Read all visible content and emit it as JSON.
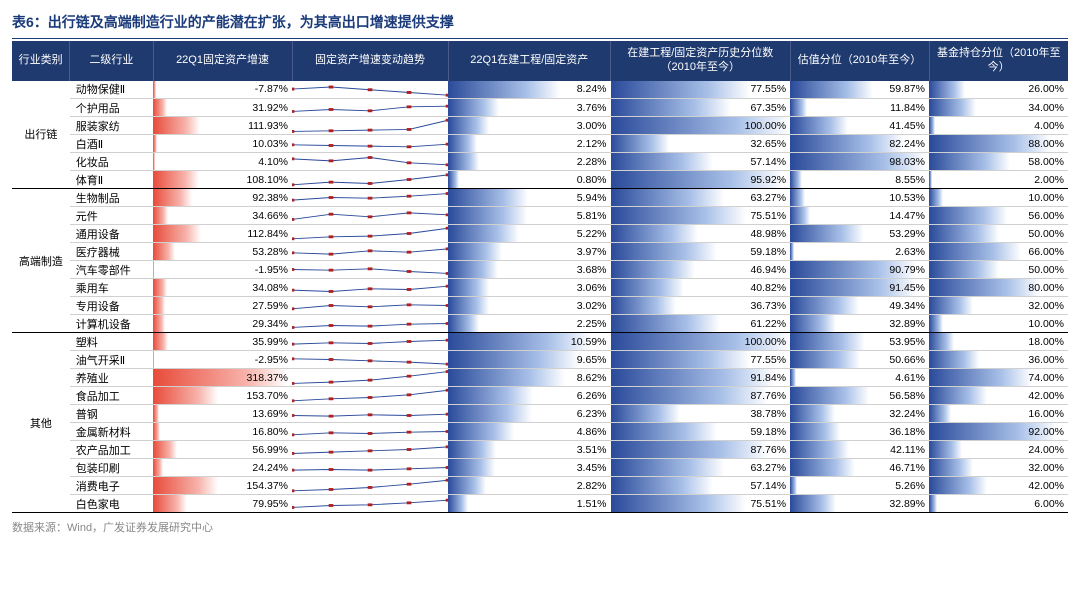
{
  "title": "表6：出行链及高端制造行业的产能潜在扩张，为其高出口增速提供支撑",
  "footer": "数据来源：Wind，广发证券发展研究中心",
  "colors": {
    "header_bg": "#1f3a6e",
    "header_text": "#ffffff",
    "red_bar_start": "#e84b3a",
    "blue_bar_start": "#2a4a9a",
    "spark_line": "#2a4a9a",
    "spark_marker": "#b02020",
    "grid": "#d0d0d0",
    "title_color": "#1a3a7a"
  },
  "columns": [
    "行业类别",
    "二级行业",
    "22Q1固定资产增速",
    "固定资产增速变动趋势",
    "22Q1在建工程/固定资产",
    "在建工程/固定资产历史分位数（2010年至今）",
    "估值分位（2010年至今）",
    "基金持仓分位（2010年至今）"
  ],
  "bar_scales": {
    "col1_max": 330,
    "col2_max": 12,
    "col3_max": 100,
    "col4_max": 100,
    "col5_max": 100
  },
  "spark_config": {
    "points": 5,
    "min": 0,
    "max": 1
  },
  "categories": [
    {
      "name": "出行链",
      "rows": [
        {
          "name": "动物保健Ⅱ",
          "v1": -7.87,
          "spark": [
            0.55,
            0.7,
            0.5,
            0.3,
            0.1
          ],
          "v2": 8.24,
          "v3": 77.55,
          "v4": 59.87,
          "v5": 26.0
        },
        {
          "name": "个护用品",
          "v1": 31.92,
          "spark": [
            0.2,
            0.35,
            0.25,
            0.55,
            0.6
          ],
          "v2": 3.76,
          "v3": 67.35,
          "v4": 11.84,
          "v5": 34.0
        },
        {
          "name": "服装家纺",
          "v1": 111.93,
          "spark": [
            0.05,
            0.1,
            0.15,
            0.2,
            0.9
          ],
          "v2": 3.0,
          "v3": 100.0,
          "v4": 41.45,
          "v5": 4.0
        },
        {
          "name": "白酒Ⅱ",
          "v1": 10.03,
          "spark": [
            0.4,
            0.35,
            0.3,
            0.25,
            0.45
          ],
          "v2": 2.12,
          "v3": 32.65,
          "v4": 82.24,
          "v5": 88.0
        },
        {
          "name": "化妆品",
          "v1": 4.1,
          "spark": [
            0.7,
            0.55,
            0.8,
            0.4,
            0.25
          ],
          "v2": 2.28,
          "v3": 57.14,
          "v4": 98.03,
          "v5": 58.0
        },
        {
          "name": "体育Ⅱ",
          "v1": 108.1,
          "spark": [
            0.1,
            0.3,
            0.2,
            0.5,
            0.85
          ],
          "v2": 0.8,
          "v3": 95.92,
          "v4": 8.55,
          "v5": 2.0
        }
      ]
    },
    {
      "name": "高端制造",
      "rows": [
        {
          "name": "生物制品",
          "v1": 92.38,
          "spark": [
            0.3,
            0.5,
            0.45,
            0.6,
            0.8
          ],
          "v2": 5.94,
          "v3": 63.27,
          "v4": 10.53,
          "v5": 10.0
        },
        {
          "name": "元件",
          "v1": 34.66,
          "spark": [
            0.2,
            0.6,
            0.4,
            0.7,
            0.55
          ],
          "v2": 5.81,
          "v3": 75.51,
          "v4": 14.47,
          "v5": 56.0
        },
        {
          "name": "通用设备",
          "v1": 112.84,
          "spark": [
            0.1,
            0.25,
            0.3,
            0.5,
            0.9
          ],
          "v2": 5.22,
          "v3": 48.98,
          "v4": 53.29,
          "v5": 50.0
        },
        {
          "name": "医疗器械",
          "v1": 53.28,
          "spark": [
            0.4,
            0.3,
            0.55,
            0.45,
            0.7
          ],
          "v2": 3.97,
          "v3": 59.18,
          "v4": 2.63,
          "v5": 66.0
        },
        {
          "name": "汽车零部件",
          "v1": -1.95,
          "spark": [
            0.5,
            0.45,
            0.55,
            0.35,
            0.2
          ],
          "v2": 3.68,
          "v3": 46.94,
          "v4": 90.79,
          "v5": 50.0
        },
        {
          "name": "乘用车",
          "v1": 34.08,
          "spark": [
            0.3,
            0.2,
            0.4,
            0.35,
            0.6
          ],
          "v2": 3.06,
          "v3": 40.82,
          "v4": 91.45,
          "v5": 80.0
        },
        {
          "name": "专用设备",
          "v1": 27.59,
          "spark": [
            0.25,
            0.5,
            0.4,
            0.55,
            0.5
          ],
          "v2": 3.02,
          "v3": 36.73,
          "v4": 49.34,
          "v5": 32.0
        },
        {
          "name": "计算机设备",
          "v1": 29.34,
          "spark": [
            0.2,
            0.35,
            0.3,
            0.45,
            0.5
          ],
          "v2": 2.25,
          "v3": 61.22,
          "v4": 32.89,
          "v5": 10.0
        }
      ]
    },
    {
      "name": "其他",
      "rows": [
        {
          "name": "塑料",
          "v1": 35.99,
          "spark": [
            0.3,
            0.4,
            0.35,
            0.5,
            0.6
          ],
          "v2": 10.59,
          "v3": 100.0,
          "v4": 53.95,
          "v5": 18.0
        },
        {
          "name": "油气开采Ⅱ",
          "v1": -2.95,
          "spark": [
            0.55,
            0.5,
            0.4,
            0.3,
            0.15
          ],
          "v2": 9.65,
          "v3": 77.55,
          "v4": 50.66,
          "v5": 36.0
        },
        {
          "name": "养殖业",
          "v1": 318.37,
          "spark": [
            0.05,
            0.15,
            0.3,
            0.6,
            0.95
          ],
          "v2": 8.62,
          "v3": 91.84,
          "v4": 4.61,
          "v5": 74.0
        },
        {
          "name": "食品加工",
          "v1": 153.7,
          "spark": [
            0.1,
            0.25,
            0.35,
            0.55,
            0.9
          ],
          "v2": 6.26,
          "v3": 87.76,
          "v4": 56.58,
          "v5": 42.0
        },
        {
          "name": "普钢",
          "v1": 13.69,
          "spark": [
            0.35,
            0.3,
            0.4,
            0.35,
            0.45
          ],
          "v2": 6.23,
          "v3": 38.78,
          "v4": 32.24,
          "v5": 16.0
        },
        {
          "name": "金属新材料",
          "v1": 16.8,
          "spark": [
            0.25,
            0.4,
            0.35,
            0.45,
            0.5
          ],
          "v2": 4.86,
          "v3": 59.18,
          "v4": 36.18,
          "v5": 92.0
        },
        {
          "name": "农产品加工",
          "v1": 56.99,
          "spark": [
            0.2,
            0.3,
            0.4,
            0.5,
            0.7
          ],
          "v2": 3.51,
          "v3": 87.76,
          "v4": 42.11,
          "v5": 24.0
        },
        {
          "name": "包装印刷",
          "v1": 24.24,
          "spark": [
            0.3,
            0.35,
            0.3,
            0.4,
            0.5
          ],
          "v2": 3.45,
          "v3": 63.27,
          "v4": 46.71,
          "v5": 32.0
        },
        {
          "name": "消费电子",
          "v1": 154.37,
          "spark": [
            0.1,
            0.2,
            0.35,
            0.6,
            0.9
          ],
          "v2": 2.82,
          "v3": 57.14,
          "v4": 5.26,
          "v5": 42.0
        },
        {
          "name": "白色家电",
          "v1": 79.95,
          "spark": [
            0.2,
            0.35,
            0.4,
            0.55,
            0.75
          ],
          "v2": 1.51,
          "v3": 75.51,
          "v4": 32.89,
          "v5": 6.0
        }
      ]
    }
  ]
}
